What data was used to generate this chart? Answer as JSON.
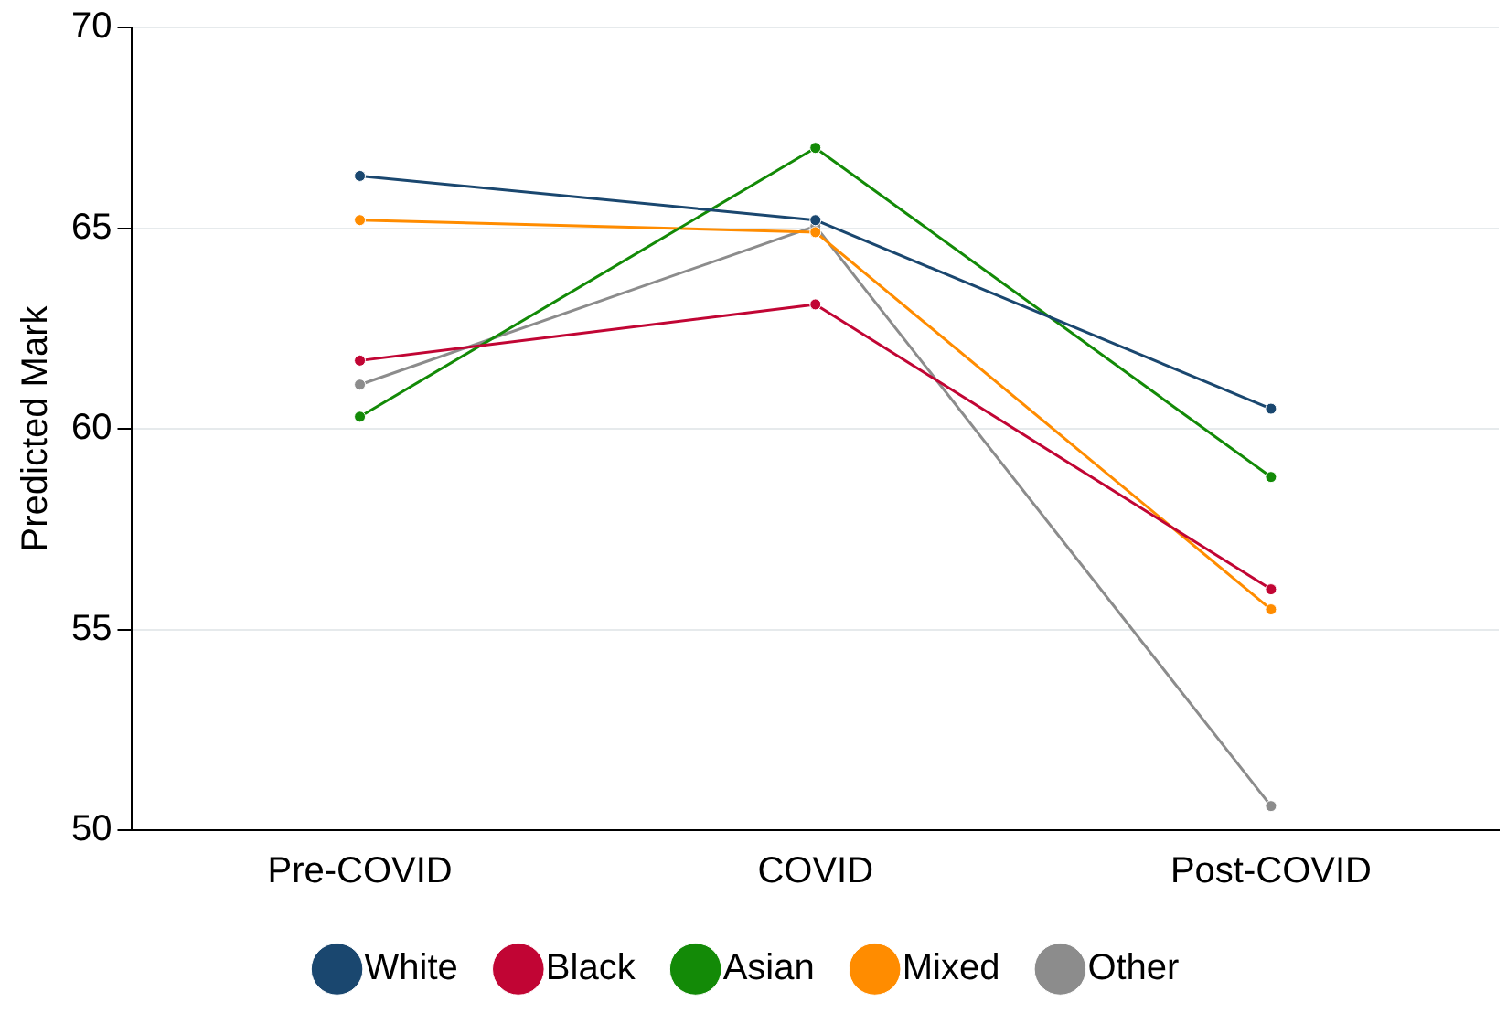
{
  "chart_data": {
    "type": "line",
    "ylabel": "Predicted Mark",
    "categories": [
      "Pre-COVID",
      "COVID",
      "Post-COVID"
    ],
    "series": [
      {
        "name": "White",
        "color": "#1a476f",
        "values": [
          66.3,
          65.2,
          60.5
        ]
      },
      {
        "name": "Black",
        "color": "#c10534",
        "values": [
          61.7,
          63.1,
          56.0
        ]
      },
      {
        "name": "Asian",
        "color": "#138a07",
        "values": [
          60.3,
          67.0,
          58.8
        ]
      },
      {
        "name": "Mixed",
        "color": "#ff8c00",
        "values": [
          65.2,
          64.9,
          55.5
        ]
      },
      {
        "name": "Other",
        "color": "#8c8c8c",
        "values": [
          61.1,
          65.05,
          50.6
        ]
      }
    ],
    "ylim": [
      50,
      70
    ],
    "yticks": [
      50,
      55,
      60,
      65,
      70
    ],
    "grid": "y",
    "legend": "bottom",
    "marker": "circle",
    "line_style": "solid"
  }
}
